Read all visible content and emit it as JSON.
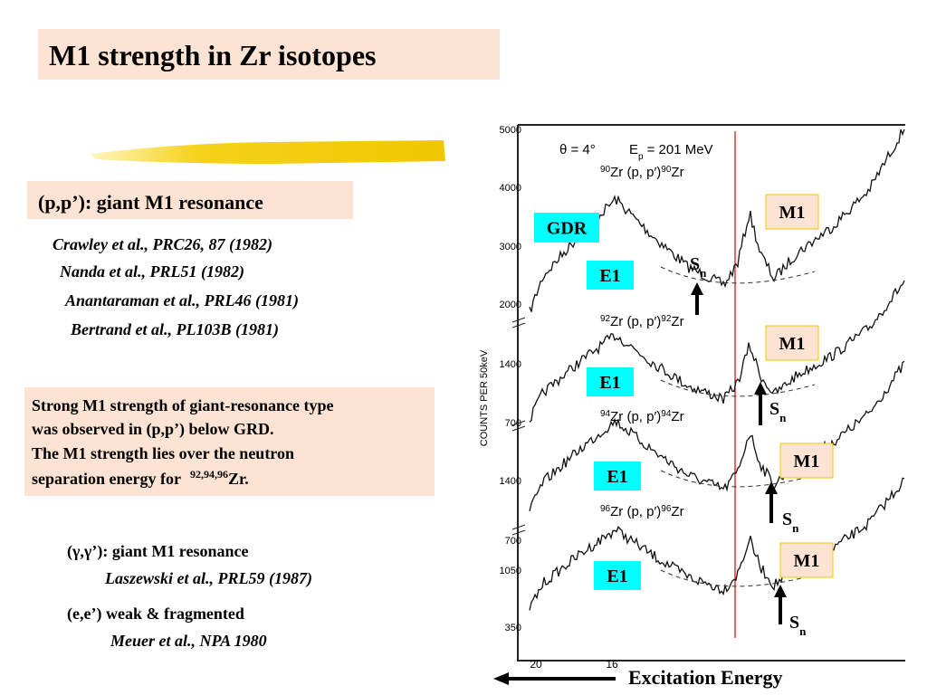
{
  "title": "M1 strength in Zr isotopes",
  "pp_section": {
    "heading": "(p,p’): giant M1 resonance",
    "refs": [
      "Crawley et al., PRC26, 87 (1982)",
      "Nanda et al., PRL51 (1982)",
      "Anantaraman et al., PRL46 (1981)",
      "Bertrand et al., PL103B (1981)"
    ]
  },
  "note": {
    "lines": [
      "Strong M1 strength of giant-resonance type",
      "was observed in (p,p’)  below GRD.",
      "The M1 strength lies over the neutron"
    ],
    "last": {
      "text": "separation energy for",
      "sup": "92,94,96",
      "tail": "Zr."
    }
  },
  "gg_section": {
    "heading": "(γ,γ’): giant M1 resonance",
    "ref": "Laszewski et al., PRL59 (1987)"
  },
  "ee_section": {
    "heading": "(e,e’) weak & fragmented",
    "ref": "Meuer et al., NPA 1980"
  },
  "figure": {
    "angle": "θ = 4°",
    "energy": {
      "e": "E",
      "sub": "p",
      "rest": "= 201 MeV"
    },
    "y_title": "COUNTS PER 50keV",
    "y_labels": [
      "5000",
      "4000",
      "3000",
      "2000",
      "1400",
      "700",
      "1400",
      "700",
      "1050",
      "350"
    ],
    "x_labels": [
      "20",
      "16"
    ],
    "reactions": [
      {
        "a": "90",
        "b": "Zr (p, p′)",
        "c": "90",
        "d": "Zr"
      },
      {
        "a": "92",
        "b": "Zr (p, p′)",
        "c": "92",
        "d": "Zr"
      },
      {
        "a": "94",
        "b": "Zr (p, p′)",
        "c": "94",
        "d": "Zr"
      },
      {
        "a": "96",
        "b": "Zr (p, p′)",
        "c": "96",
        "d": "Zr"
      }
    ],
    "gdr": "GDR",
    "e1": [
      "E1",
      "E1",
      "E1",
      "E1"
    ],
    "m1": [
      "M1",
      "M1",
      "M1",
      "M1"
    ],
    "sn": [
      {
        "s": "S",
        "n": "n"
      },
      {
        "s": "S",
        "n": "n"
      },
      {
        "s": "S",
        "n": "n"
      },
      {
        "s": "S",
        "n": "n"
      }
    ]
  },
  "footer": "Excitation Energy"
}
